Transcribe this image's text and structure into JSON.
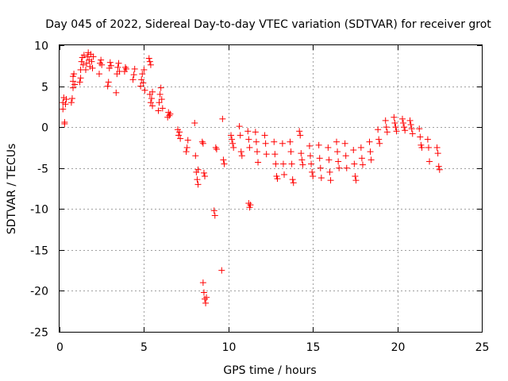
{
  "chart_data": {
    "type": "scatter",
    "title": "Day 045 of 2022, Sidereal Day-to-day VTEC variation (SDTVAR) for receiver grot",
    "xlabel": "GPS time / hours",
    "ylabel": "SDTVAR / TECUs",
    "xlim": [
      0,
      25
    ],
    "ylim": [
      -25,
      10
    ],
    "xticks": [
      0,
      5,
      10,
      15,
      20,
      25
    ],
    "yticks": [
      10,
      5,
      0,
      -5,
      -10,
      -15,
      -20,
      -25
    ],
    "xtick_labels": [
      "0",
      "5",
      "10",
      "15",
      "20",
      "25"
    ],
    "ytick_labels": [
      "10",
      "5",
      "0",
      "-5",
      "-10",
      "-15",
      "-20",
      "-25"
    ],
    "grid": true,
    "marker": "+",
    "color": "#ff0000",
    "series": [
      {
        "name": "SDTVAR",
        "points": [
          [
            0.2,
            2.2
          ],
          [
            0.2,
            3.0
          ],
          [
            0.25,
            3.6
          ],
          [
            0.3,
            0.4
          ],
          [
            0.3,
            0.6
          ],
          [
            0.35,
            2.8
          ],
          [
            0.4,
            3.4
          ],
          [
            0.7,
            3.0
          ],
          [
            0.75,
            3.5
          ],
          [
            0.8,
            4.8
          ],
          [
            0.8,
            5.6
          ],
          [
            0.8,
            6.2
          ],
          [
            0.85,
            6.5
          ],
          [
            0.9,
            5.2
          ],
          [
            1.2,
            5.5
          ],
          [
            1.25,
            6.0
          ],
          [
            1.25,
            7.0
          ],
          [
            1.3,
            8.0
          ],
          [
            1.35,
            8.5
          ],
          [
            1.4,
            7.6
          ],
          [
            1.45,
            8.8
          ],
          [
            1.55,
            7.0
          ],
          [
            1.6,
            7.8
          ],
          [
            1.65,
            8.6
          ],
          [
            1.7,
            9.1
          ],
          [
            1.75,
            8.2
          ],
          [
            1.8,
            7.4
          ],
          [
            1.85,
            8.9
          ],
          [
            1.9,
            8.0
          ],
          [
            1.95,
            7.2
          ],
          [
            2.0,
            8.6
          ],
          [
            2.35,
            6.5
          ],
          [
            2.4,
            7.8
          ],
          [
            2.45,
            8.2
          ],
          [
            2.5,
            7.6
          ],
          [
            2.85,
            5.0
          ],
          [
            2.9,
            5.5
          ],
          [
            2.95,
            7.2
          ],
          [
            3.0,
            7.9
          ],
          [
            3.05,
            7.5
          ],
          [
            3.35,
            4.2
          ],
          [
            3.4,
            6.5
          ],
          [
            3.45,
            7.3
          ],
          [
            3.5,
            7.8
          ],
          [
            3.55,
            6.8
          ],
          [
            3.85,
            6.8
          ],
          [
            3.9,
            7.3
          ],
          [
            3.95,
            7.1
          ],
          [
            4.35,
            5.8
          ],
          [
            4.4,
            6.4
          ],
          [
            4.45,
            7.1
          ],
          [
            4.8,
            5.0
          ],
          [
            4.85,
            5.8
          ],
          [
            4.9,
            6.5
          ],
          [
            4.95,
            5.4
          ],
          [
            5.0,
            7.0
          ],
          [
            5.05,
            4.5
          ],
          [
            5.3,
            8.4
          ],
          [
            5.35,
            8.0
          ],
          [
            5.4,
            7.6
          ],
          [
            5.35,
            4.0
          ],
          [
            5.4,
            3.0
          ],
          [
            5.45,
            3.5
          ],
          [
            5.5,
            2.6
          ],
          [
            5.5,
            4.3
          ],
          [
            5.85,
            2.0
          ],
          [
            5.9,
            3.0
          ],
          [
            5.95,
            4.0
          ],
          [
            6.0,
            4.8
          ],
          [
            6.05,
            3.4
          ],
          [
            6.1,
            2.3
          ],
          [
            6.4,
            1.2
          ],
          [
            6.45,
            1.8
          ],
          [
            6.5,
            1.4
          ],
          [
            6.55,
            1.6
          ],
          [
            7.0,
            -0.3
          ],
          [
            7.05,
            -1.0
          ],
          [
            7.1,
            -0.6
          ],
          [
            7.15,
            -1.4
          ],
          [
            7.5,
            -3.0
          ],
          [
            7.55,
            -2.5
          ],
          [
            7.6,
            -1.6
          ],
          [
            8.0,
            0.5
          ],
          [
            8.05,
            -3.5
          ],
          [
            8.1,
            -5.5
          ],
          [
            8.15,
            -6.4
          ],
          [
            8.2,
            -7.0
          ],
          [
            8.2,
            -5.2
          ],
          [
            8.45,
            -1.8
          ],
          [
            8.5,
            -2.0
          ],
          [
            8.55,
            -5.6
          ],
          [
            8.6,
            -6.0
          ],
          [
            8.5,
            -19.0
          ],
          [
            8.55,
            -20.2
          ],
          [
            8.6,
            -21.0
          ],
          [
            8.65,
            -21.5
          ],
          [
            8.7,
            -20.8
          ],
          [
            9.15,
            -10.2
          ],
          [
            9.2,
            -10.8
          ],
          [
            9.25,
            -2.5
          ],
          [
            9.3,
            -2.7
          ],
          [
            9.65,
            1.0
          ],
          [
            9.7,
            -4.0
          ],
          [
            9.75,
            -4.5
          ],
          [
            9.6,
            -17.5
          ],
          [
            10.15,
            -1.0
          ],
          [
            10.2,
            -1.5
          ],
          [
            10.25,
            -2.0
          ],
          [
            10.3,
            -2.5
          ],
          [
            10.65,
            0.1
          ],
          [
            10.7,
            -1.0
          ],
          [
            10.75,
            -3.0
          ],
          [
            10.8,
            -3.5
          ],
          [
            11.15,
            -0.5
          ],
          [
            11.2,
            -1.5
          ],
          [
            11.25,
            -2.5
          ],
          [
            11.2,
            -9.3
          ],
          [
            11.25,
            -9.8
          ],
          [
            11.3,
            -9.5
          ],
          [
            11.6,
            -0.6
          ],
          [
            11.65,
            -1.8
          ],
          [
            11.7,
            -3.0
          ],
          [
            11.75,
            -4.3
          ],
          [
            12.15,
            -1.0
          ],
          [
            12.2,
            -2.0
          ],
          [
            12.25,
            -3.3
          ],
          [
            12.7,
            -1.8
          ],
          [
            12.75,
            -3.3
          ],
          [
            12.8,
            -4.5
          ],
          [
            12.85,
            -6.0
          ],
          [
            12.9,
            -6.3
          ],
          [
            13.2,
            -2.0
          ],
          [
            13.25,
            -4.5
          ],
          [
            13.3,
            -5.8
          ],
          [
            13.65,
            -1.8
          ],
          [
            13.7,
            -3.0
          ],
          [
            13.75,
            -4.5
          ],
          [
            13.8,
            -6.4
          ],
          [
            13.85,
            -6.8
          ],
          [
            14.2,
            -0.5
          ],
          [
            14.25,
            -1.0
          ],
          [
            14.3,
            -3.2
          ],
          [
            14.35,
            -4.0
          ],
          [
            14.4,
            -4.6
          ],
          [
            14.8,
            -2.3
          ],
          [
            14.85,
            -3.5
          ],
          [
            14.9,
            -4.5
          ],
          [
            14.95,
            -5.5
          ],
          [
            15.0,
            -6.0
          ],
          [
            15.35,
            -2.2
          ],
          [
            15.4,
            -3.8
          ],
          [
            15.45,
            -5.0
          ],
          [
            15.5,
            -6.2
          ],
          [
            15.9,
            -2.5
          ],
          [
            15.95,
            -4.0
          ],
          [
            16.0,
            -5.5
          ],
          [
            16.05,
            -6.5
          ],
          [
            16.4,
            -1.8
          ],
          [
            16.45,
            -3.0
          ],
          [
            16.5,
            -4.2
          ],
          [
            16.55,
            -5.0
          ],
          [
            16.9,
            -2.0
          ],
          [
            16.95,
            -3.5
          ],
          [
            17.0,
            -5.0
          ],
          [
            17.4,
            -2.8
          ],
          [
            17.45,
            -4.5
          ],
          [
            17.5,
            -6.0
          ],
          [
            17.55,
            -6.5
          ],
          [
            17.85,
            -2.5
          ],
          [
            17.9,
            -3.8
          ],
          [
            17.95,
            -4.6
          ],
          [
            18.35,
            -1.8
          ],
          [
            18.4,
            -3.0
          ],
          [
            18.45,
            -4.0
          ],
          [
            18.85,
            -0.3
          ],
          [
            18.9,
            -1.5
          ],
          [
            18.95,
            -2.0
          ],
          [
            19.3,
            0.8
          ],
          [
            19.35,
            0.0
          ],
          [
            19.4,
            -0.6
          ],
          [
            19.8,
            1.2
          ],
          [
            19.85,
            0.5
          ],
          [
            19.9,
            0.0
          ],
          [
            19.95,
            -0.5
          ],
          [
            20.3,
            1.0
          ],
          [
            20.35,
            0.5
          ],
          [
            20.4,
            0.0
          ],
          [
            20.45,
            -0.4
          ],
          [
            20.75,
            0.8
          ],
          [
            20.8,
            0.3
          ],
          [
            20.85,
            -0.2
          ],
          [
            20.9,
            -0.8
          ],
          [
            21.3,
            -0.2
          ],
          [
            21.35,
            -1.2
          ],
          [
            21.4,
            -2.2
          ],
          [
            21.45,
            -2.5
          ],
          [
            21.8,
            -1.5
          ],
          [
            21.85,
            -2.5
          ],
          [
            21.9,
            -4.2
          ],
          [
            22.35,
            -2.5
          ],
          [
            22.4,
            -3.2
          ],
          [
            22.45,
            -4.8
          ],
          [
            22.5,
            -5.2
          ]
        ]
      }
    ]
  }
}
